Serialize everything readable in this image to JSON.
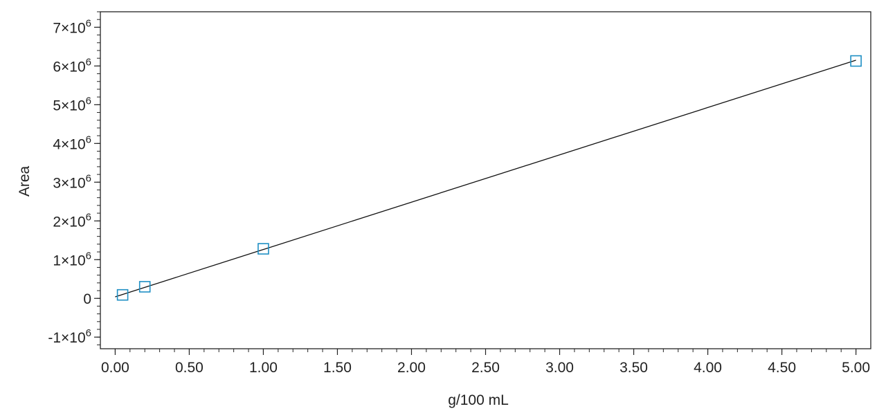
{
  "chart_data": {
    "type": "scatter",
    "xlabel": "g/100 mL",
    "ylabel": "Area",
    "xlim": [
      -0.1,
      5.1
    ],
    "ylim": [
      -1300000,
      7400000
    ],
    "x_ticks": [
      0,
      0.5,
      1,
      1.5,
      2,
      2.5,
      3,
      3.5,
      4,
      4.5,
      5
    ],
    "x_tick_labels": [
      "0.00",
      "0.50",
      "1.00",
      "1.50",
      "2.00",
      "2.50",
      "3.00",
      "3.50",
      "4.00",
      "4.50",
      "5.00"
    ],
    "y_ticks": [
      -1000000,
      0,
      1000000,
      2000000,
      3000000,
      4000000,
      5000000,
      6000000,
      7000000
    ],
    "y_tick_labels": [
      {
        "mantissa": "-1",
        "exponent": "6"
      },
      {
        "mantissa": "0",
        "exponent": ""
      },
      {
        "mantissa": "1",
        "exponent": "6"
      },
      {
        "mantissa": "2",
        "exponent": "6"
      },
      {
        "mantissa": "3",
        "exponent": "6"
      },
      {
        "mantissa": "4",
        "exponent": "6"
      },
      {
        "mantissa": "5",
        "exponent": "6"
      },
      {
        "mantissa": "6",
        "exponent": "6"
      },
      {
        "mantissa": "7",
        "exponent": "6"
      }
    ],
    "series": [
      {
        "points": [
          {
            "x": 0.05,
            "y": 90000
          },
          {
            "x": 0.2,
            "y": 300000
          },
          {
            "x": 1.0,
            "y": 1280000
          },
          {
            "x": 5.0,
            "y": 6130000
          }
        ],
        "marker": "open-square",
        "color": "#1e8fc4"
      }
    ],
    "fit_line": {
      "x": [
        0,
        5.0
      ],
      "y": [
        40000,
        6150000
      ],
      "color": "#111111"
    },
    "grid": false,
    "legend": "none"
  }
}
